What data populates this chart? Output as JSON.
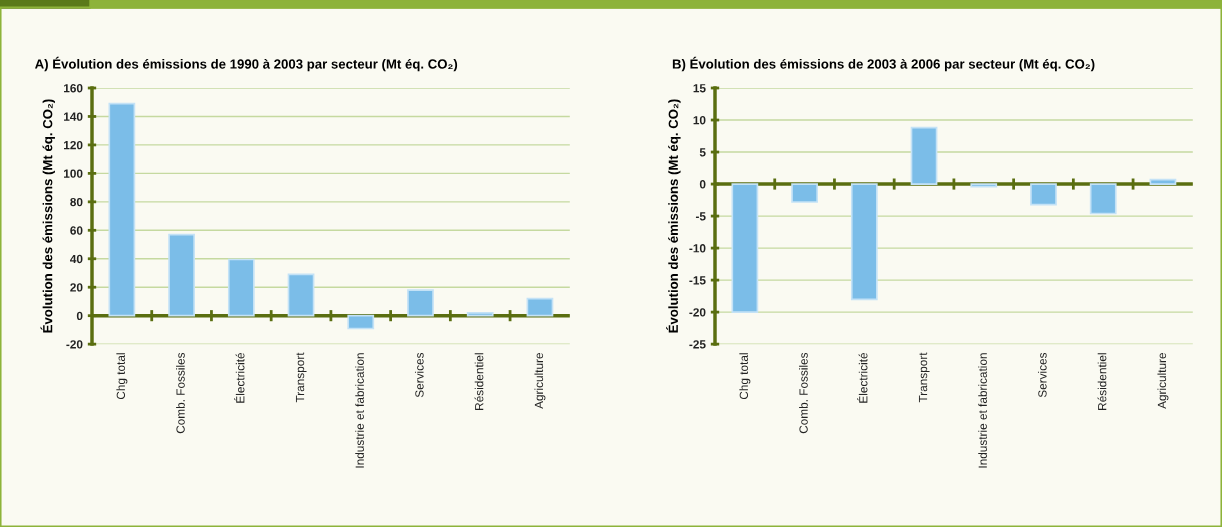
{
  "chart_data": [
    {
      "type": "bar",
      "title": "A) Évolution des émissions de 1990 à 2003 par secteur (Mt éq. CO₂)",
      "ylabel": "Évolution des émissions (Mt éq. CO₂)",
      "categories": [
        "Chg total",
        "Comb. Fossiles",
        "Électricité",
        "Transport",
        "Industrie et fabrication",
        "Services",
        "Résidentiel",
        "Agriculture"
      ],
      "values": [
        149,
        57,
        39.5,
        29,
        -9,
        18,
        2,
        12
      ],
      "color": "#7bbde8",
      "ylim": [
        -20,
        160
      ],
      "yticks": [
        -20,
        0,
        20,
        40,
        60,
        80,
        100,
        120,
        140,
        160
      ],
      "grid": "y",
      "legend": false,
      "ref_lines": [
        {
          "axis": "y",
          "value": 0,
          "color": "#5a6e10"
        }
      ]
    },
    {
      "type": "bar",
      "title": "B) Évolution des émissions de 2003 à 2006 par secteur (Mt éq. CO₂)",
      "ylabel": "Évolution des émissions (Mt éq. CO₂)",
      "categories": [
        "Chg total",
        "Comb. Fossiles",
        "Électricité",
        "Transport",
        "Industrie et fabrication",
        "Services",
        "Résidentiel",
        "Agriculture"
      ],
      "values": [
        -20,
        -2.8,
        -18,
        8.8,
        -0.4,
        -3.2,
        -4.6,
        0.7
      ],
      "color": "#7bbde8",
      "ylim": [
        -25,
        15
      ],
      "yticks": [
        -25,
        -20,
        -15,
        -10,
        -5,
        0,
        5,
        10,
        15
      ],
      "grid": "y",
      "legend": false,
      "ref_lines": [
        {
          "axis": "y",
          "value": 0,
          "color": "#5a6e10"
        }
      ]
    }
  ]
}
